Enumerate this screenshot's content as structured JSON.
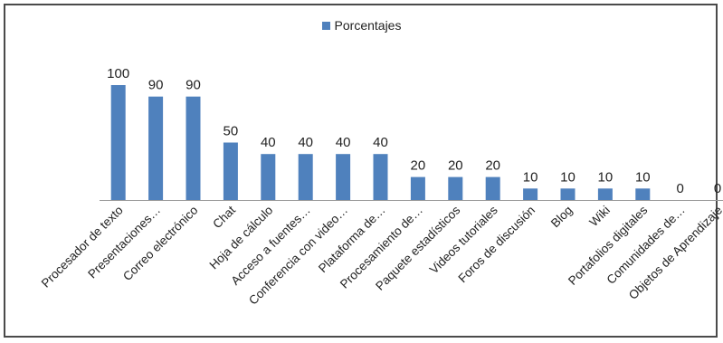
{
  "chart_data": {
    "type": "bar",
    "legend": {
      "position": "top",
      "entries": [
        "Porcentajes"
      ]
    },
    "series": [
      {
        "name": "Porcentajes",
        "color": "#4f81bd",
        "values": [
          100,
          90,
          90,
          50,
          40,
          40,
          40,
          40,
          20,
          20,
          20,
          10,
          10,
          10,
          10,
          0,
          0
        ]
      }
    ],
    "categories": [
      "Procesador de texto",
      "Presentaciones…",
      "Correo electrónico",
      "Chat",
      "Hoja de cálculo",
      "Acceso a fuentes…",
      "Conferencia con video…",
      "Plataforma de…",
      "Procesamiento de…",
      "Paquete estadísticos",
      "Videos tutoriales",
      "Foros de discusión",
      "Blog",
      "Wiki",
      "Portafolios digitales",
      "Comunidades de…",
      "Objetos de Aprendizaje"
    ],
    "ylim": [
      0,
      100
    ],
    "grid": false,
    "data_labels": true
  }
}
